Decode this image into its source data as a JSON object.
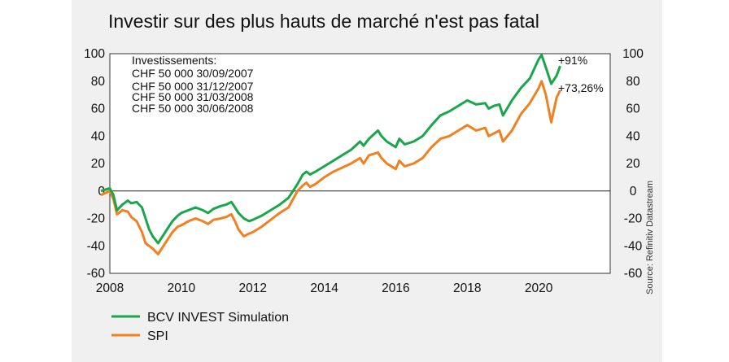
{
  "chart_data": {
    "type": "line",
    "title": "Investir sur des plus hauts de marché n'est pas fatal",
    "source": "Source: Refinitiv Datastream",
    "xlim": [
      2008,
      2022
    ],
    "ylim": [
      -60,
      100
    ],
    "y_ticks": [
      "100",
      "80",
      "60",
      "40",
      "20",
      "0",
      "-20",
      "-40",
      "-60"
    ],
    "x_ticks": [
      "2008",
      "2010",
      "2012",
      "2014",
      "2016",
      "2018",
      "2020"
    ],
    "annotation_lines": [
      "Investissements:",
      "CHF 50 000 30/09/2007",
      "CHF 50 000 31/12/2007",
      "CHF 50 000 31/03/2008",
      "CHF 50 000 30/06/2008"
    ],
    "end_labels": {
      "green": "+91%",
      "orange": "+73,26%"
    },
    "colors": {
      "green": "#1aa64a",
      "orange": "#f08020"
    },
    "series": [
      {
        "name": "BCV INVEST Simulation",
        "color": "#1aa64a",
        "x": [
          2007.75,
          2008.0,
          2008.1,
          2008.2,
          2008.35,
          2008.5,
          2008.6,
          2008.75,
          2008.9,
          2009.0,
          2009.1,
          2009.2,
          2009.35,
          2009.5,
          2009.6,
          2009.75,
          2009.9,
          2010.0,
          2010.2,
          2010.4,
          2010.6,
          2010.75,
          2010.9,
          2011.1,
          2011.25,
          2011.4,
          2011.5,
          2011.6,
          2011.75,
          2011.9,
          2012.0,
          2012.25,
          2012.5,
          2012.75,
          2013.0,
          2013.25,
          2013.4,
          2013.5,
          2013.6,
          2013.75,
          2014.0,
          2014.25,
          2014.5,
          2014.75,
          2015.0,
          2015.1,
          2015.25,
          2015.5,
          2015.6,
          2015.75,
          2016.0,
          2016.1,
          2016.25,
          2016.5,
          2016.75,
          2017.0,
          2017.25,
          2017.5,
          2017.75,
          2018.0,
          2018.25,
          2018.5,
          2018.6,
          2018.75,
          2018.9,
          2019.0,
          2019.25,
          2019.5,
          2019.75,
          2020.0,
          2020.08,
          2020.2,
          2020.35,
          2020.5,
          2020.6
        ],
        "values": [
          0,
          2,
          -3,
          -14,
          -10,
          -7,
          -9,
          -8,
          -12,
          -20,
          -28,
          -33,
          -38,
          -32,
          -28,
          -22,
          -18,
          -16,
          -14,
          -12,
          -14,
          -16,
          -13,
          -11,
          -10,
          -8,
          -12,
          -16,
          -20,
          -22,
          -21,
          -18,
          -14,
          -10,
          -5,
          5,
          12,
          14,
          12,
          14,
          18,
          22,
          26,
          30,
          36,
          33,
          38,
          44,
          40,
          36,
          32,
          38,
          34,
          36,
          40,
          48,
          55,
          58,
          62,
          66,
          63,
          64,
          60,
          62,
          63,
          55,
          66,
          75,
          82,
          96,
          99,
          90,
          78,
          84,
          91
        ]
      },
      {
        "name": "SPI",
        "color": "#f08020",
        "x": [
          2007.75,
          2008.0,
          2008.1,
          2008.2,
          2008.35,
          2008.5,
          2008.6,
          2008.75,
          2008.9,
          2009.0,
          2009.1,
          2009.2,
          2009.35,
          2009.5,
          2009.6,
          2009.75,
          2009.9,
          2010.0,
          2010.2,
          2010.4,
          2010.6,
          2010.75,
          2010.9,
          2011.1,
          2011.25,
          2011.4,
          2011.5,
          2011.6,
          2011.75,
          2011.9,
          2012.0,
          2012.25,
          2012.5,
          2012.75,
          2013.0,
          2013.25,
          2013.4,
          2013.5,
          2013.6,
          2013.75,
          2014.0,
          2014.25,
          2014.5,
          2014.75,
          2015.0,
          2015.1,
          2015.25,
          2015.5,
          2015.6,
          2015.75,
          2016.0,
          2016.1,
          2016.25,
          2016.5,
          2016.75,
          2017.0,
          2017.25,
          2017.5,
          2017.75,
          2018.0,
          2018.25,
          2018.5,
          2018.6,
          2018.75,
          2018.9,
          2019.0,
          2019.25,
          2019.5,
          2019.75,
          2020.0,
          2020.08,
          2020.2,
          2020.35,
          2020.5,
          2020.6
        ],
        "values": [
          -3,
          0,
          -6,
          -17,
          -14,
          -15,
          -19,
          -22,
          -30,
          -38,
          -40,
          -42,
          -46,
          -40,
          -36,
          -30,
          -26,
          -25,
          -22,
          -20,
          -22,
          -24,
          -21,
          -20,
          -19,
          -17,
          -22,
          -28,
          -33,
          -31,
          -30,
          -26,
          -21,
          -16,
          -12,
          0,
          4,
          6,
          3,
          5,
          10,
          14,
          17,
          20,
          24,
          20,
          26,
          28,
          24,
          20,
          16,
          22,
          18,
          20,
          24,
          32,
          38,
          40,
          44,
          48,
          44,
          46,
          40,
          42,
          44,
          36,
          44,
          56,
          64,
          75,
          80,
          70,
          50,
          68,
          73.26
        ]
      }
    ]
  }
}
